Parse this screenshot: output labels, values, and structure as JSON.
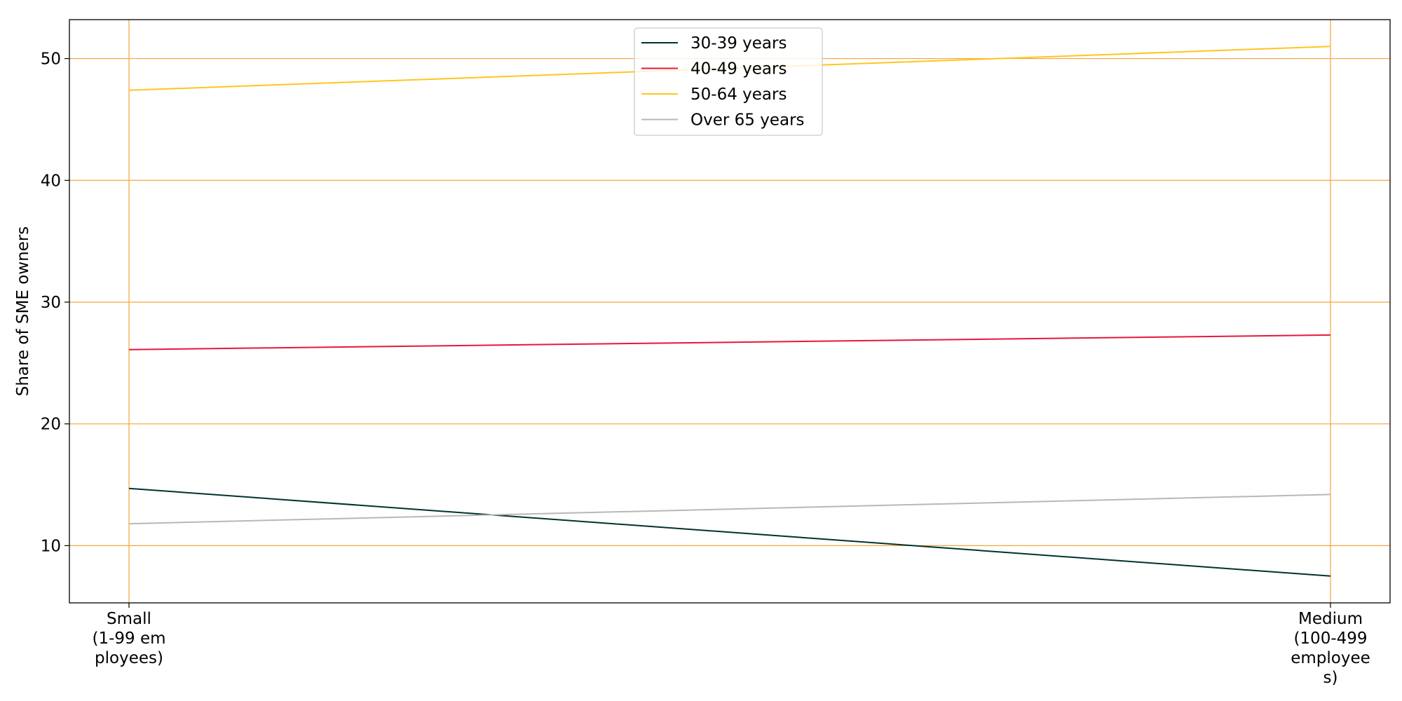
{
  "chart_data": {
    "type": "line",
    "title": "",
    "xlabel": "",
    "ylabel": "Share of SME owners",
    "categories": [
      [
        "Small",
        "(1-99 em",
        "ployees)"
      ],
      [
        "Medium",
        "(100-499",
        "employee",
        "s)"
      ]
    ],
    "series": [
      {
        "name": "30-39 years",
        "color": "#00332e",
        "values": [
          14.7,
          7.5
        ]
      },
      {
        "name": "40-49 years",
        "color": "#e8173c",
        "values": [
          26.1,
          27.3
        ]
      },
      {
        "name": "50-64 years",
        "color": "#ffc61e",
        "values": [
          47.4,
          51.0
        ]
      },
      {
        "name": "Over 65 years",
        "color": "#b8b8b8",
        "values": [
          11.8,
          14.2
        ]
      }
    ],
    "ylim": [
      5.3,
      53.2
    ],
    "yticks": [
      10,
      20,
      30,
      40,
      50
    ],
    "grid": true,
    "grid_color": "#f4a43c",
    "legend_position": "top-center"
  }
}
